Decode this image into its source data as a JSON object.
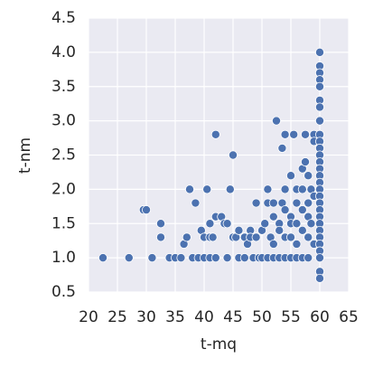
{
  "chart_data": {
    "type": "scatter",
    "x_label": "t-mq",
    "y_label": "t-nm",
    "xlim": [
      20,
      65
    ],
    "ylim": [
      0.5,
      4.5
    ],
    "xticks": [
      20,
      25,
      30,
      35,
      40,
      45,
      50,
      55,
      60,
      65
    ],
    "yticks": [
      0.5,
      {
        "value": 1,
        "label": "1.0"
      },
      1.5,
      {
        "value": 2,
        "label": "2.0"
      },
      2.5,
      {
        "value": 3,
        "label": "3.0"
      },
      3.5,
      {
        "value": 4,
        "label": "4.0"
      },
      4.5
    ],
    "grid": true,
    "background": "#eaeaf2",
    "series": [
      {
        "color": "#4c72b0",
        "x": [
          22.5,
          27,
          29.5,
          30,
          31,
          32.5,
          32.5,
          34,
          35,
          36,
          36.5,
          37,
          37.5,
          38,
          38.5,
          39,
          39.5,
          40,
          40,
          40.5,
          41,
          41,
          41,
          41.5,
          42,
          42,
          42,
          43,
          43.5,
          44,
          44,
          44.5,
          45,
          45,
          45.5,
          46,
          46,
          47,
          47,
          47.5,
          48,
          48,
          48.5,
          49,
          49,
          49.5,
          50,
          50,
          50.5,
          51,
          51,
          51,
          51.5,
          52,
          52,
          52,
          52,
          52.5,
          53,
          53,
          53,
          53.5,
          53.5,
          54,
          54,
          54,
          54,
          54,
          55,
          55,
          55,
          55,
          55,
          55.5,
          56,
          56,
          56,
          56,
          56,
          57,
          57,
          57,
          57,
          57,
          57.5,
          57.5,
          58,
          58,
          58,
          58,
          58,
          58.5,
          58.5,
          59,
          59,
          59,
          59,
          60,
          60,
          60,
          60,
          60,
          60,
          60,
          60,
          60,
          60,
          60,
          60,
          60,
          60,
          60,
          60,
          60,
          60,
          60,
          60,
          60,
          60,
          60,
          60,
          60,
          60,
          60,
          60,
          60
        ],
        "values": [
          1.0,
          1.0,
          1.7,
          1.7,
          1.0,
          1.5,
          1.3,
          1.0,
          1.0,
          1.0,
          1.2,
          1.3,
          2.0,
          1.0,
          1.8,
          1.0,
          1.4,
          1.3,
          1.0,
          2.0,
          1.5,
          1.3,
          1.0,
          1.3,
          2.8,
          1.6,
          1.0,
          1.6,
          1.5,
          1.5,
          1.0,
          2.0,
          2.5,
          1.3,
          1.3,
          1.4,
          1.0,
          1.3,
          1.0,
          1.2,
          1.4,
          1.3,
          1.0,
          1.8,
          1.3,
          1.0,
          1.4,
          1.0,
          1.5,
          2.0,
          1.8,
          1.0,
          1.3,
          1.8,
          1.6,
          1.2,
          1.0,
          3.0,
          1.5,
          1.4,
          1.0,
          2.6,
          1.8,
          2.8,
          2.0,
          1.7,
          1.3,
          1.0,
          2.2,
          1.6,
          1.5,
          1.3,
          1.0,
          2.8,
          2.0,
          1.8,
          1.5,
          1.2,
          1.0,
          2.3,
          2.0,
          1.7,
          1.4,
          1.0,
          2.8,
          2.4,
          2.2,
          1.8,
          1.6,
          1.3,
          1.0,
          2.0,
          1.5,
          2.8,
          2.7,
          1.9,
          1.2,
          4.0,
          3.8,
          3.7,
          3.6,
          3.5,
          3.3,
          3.2,
          3.0,
          2.8,
          2.7,
          2.6,
          2.5,
          2.4,
          2.3,
          2.2,
          2.1,
          2.0,
          1.9,
          1.8,
          1.7,
          1.6,
          1.5,
          1.4,
          1.3,
          1.2,
          1.1,
          1.0,
          0.8,
          0.7
        ]
      }
    ]
  }
}
